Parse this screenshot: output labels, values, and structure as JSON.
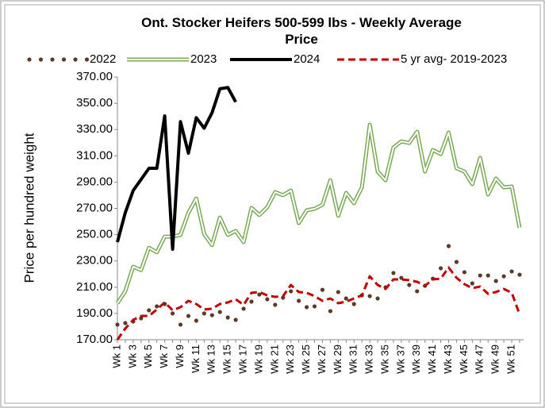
{
  "chart_data": {
    "type": "line",
    "title": "Ont. Stocker Heifers 500-599 lbs - Weekly Average Price",
    "y_label": "Price per hundred weight",
    "legend": "top",
    "grid": false,
    "categories": [
      "Wk 1",
      null,
      "Wk 3",
      null,
      "Wk 5",
      null,
      "Wk 7",
      null,
      "Wk 9",
      null,
      "Wk 11",
      null,
      "Wk 13",
      null,
      "Wk 15",
      null,
      "Wk 17",
      null,
      "Wk 19",
      null,
      "Wk 21",
      null,
      "Wk 23",
      null,
      "Wk 25",
      null,
      "Wk 27",
      null,
      "Wk 29",
      null,
      "Wk 31",
      null,
      "Wk 33",
      null,
      "Wk 35",
      null,
      "Wk 37",
      null,
      "Wk 39",
      null,
      "Wk 41",
      null,
      "Wk 43",
      null,
      "Wk 45",
      null,
      "Wk 47",
      null,
      "Wk 49",
      null,
      "Wk 51",
      null
    ],
    "ylim": [
      170,
      370
    ],
    "yticks": [
      {
        "value": 170,
        "label": "170.00"
      },
      {
        "value": 190,
        "label": "190.00"
      },
      {
        "value": 210,
        "label": "210.00"
      },
      {
        "value": 230,
        "label": "230.00"
      },
      {
        "value": 250,
        "label": "250.00"
      },
      {
        "value": 270,
        "label": "270.00"
      },
      {
        "value": 290,
        "label": "290.00"
      },
      {
        "value": 310,
        "label": "310.00"
      },
      {
        "value": 330,
        "label": "330.00"
      },
      {
        "value": 350,
        "label": "350.00"
      },
      {
        "value": 370,
        "label": "370.00"
      }
    ],
    "series": [
      {
        "name": "2022",
        "color": "#5b3a29",
        "style": "dotted",
        "values": [
          181.5,
          182.7,
          183.9,
          186.3,
          192.4,
          195.4,
          197.2,
          190,
          181.5,
          188.1,
          184.5,
          190,
          188.7,
          191.1,
          186.9,
          185.1,
          193.6,
          199,
          204.4,
          200.8,
          196.6,
          202,
          206.9,
          199.6,
          194.8,
          195.4,
          208,
          191.8,
          206.3,
          201.4,
          197.2,
          203.8,
          203.2,
          201.4,
          209.9,
          220.8,
          217.1,
          211.7,
          206.9,
          211.1,
          216.5,
          224.4,
          241.3,
          229.2,
          221.4,
          212.9,
          218.9,
          218.9,
          214.7,
          218.3,
          222,
          219.5
        ]
      },
      {
        "name": "2023",
        "color": "#7aa858",
        "style": "double",
        "values": [
          197.8,
          206.9,
          225.6,
          223,
          240,
          236.5,
          248.5,
          248.5,
          249.8,
          266.7,
          277.5,
          250.4,
          242,
          263,
          249.8,
          252.8,
          244.3,
          270.3,
          264.9,
          270.9,
          282.4,
          280,
          283.6,
          258.8,
          268.5,
          269.7,
          272.7,
          291.4,
          264.3,
          281.8,
          273.9,
          286,
          333.7,
          298,
          291.4,
          316.2,
          321,
          319.8,
          328.3,
          298,
          314.4,
          311.4,
          327.7,
          300.5,
          298,
          288.4,
          308.4,
          280.6,
          292.7,
          286,
          286.6,
          255.2
        ]
      },
      {
        "name": "2024",
        "color": "#000000",
        "style": "solid",
        "values": [
          244.3,
          266.7,
          283.6,
          292,
          300.5,
          300.5,
          340.4,
          238.9,
          336,
          312,
          339,
          331,
          342.8,
          361,
          362,
          351,
          null,
          null,
          null,
          null,
          null,
          null,
          null,
          null,
          null,
          null,
          null,
          null,
          null,
          null,
          null,
          null,
          null,
          null,
          null,
          null,
          null,
          null,
          null,
          null,
          null,
          null,
          null,
          null,
          null,
          null,
          null,
          null,
          null,
          null,
          null,
          null
        ]
      },
      {
        "name": "5 yr avg- 2019-2023",
        "color": "#c00000",
        "style": "dashed",
        "values": [
          170,
          178.5,
          185.1,
          188.1,
          188.1,
          193,
          198.4,
          192.4,
          194.8,
          199.6,
          197.2,
          193,
          193.6,
          197.2,
          198.4,
          200.8,
          196.6,
          205.7,
          206.3,
          203.8,
          202.6,
          203.2,
          211.7,
          206.3,
          205.7,
          203.2,
          199.6,
          201.4,
          197.8,
          199,
          201.4,
          203.8,
          218.3,
          211.7,
          208.7,
          215.9,
          215.9,
          215.3,
          214.1,
          211.1,
          215.9,
          216.5,
          225,
          217.1,
          212.3,
          209.3,
          210.5,
          205,
          206.3,
          208.7,
          205.7,
          189.3
        ]
      }
    ]
  }
}
